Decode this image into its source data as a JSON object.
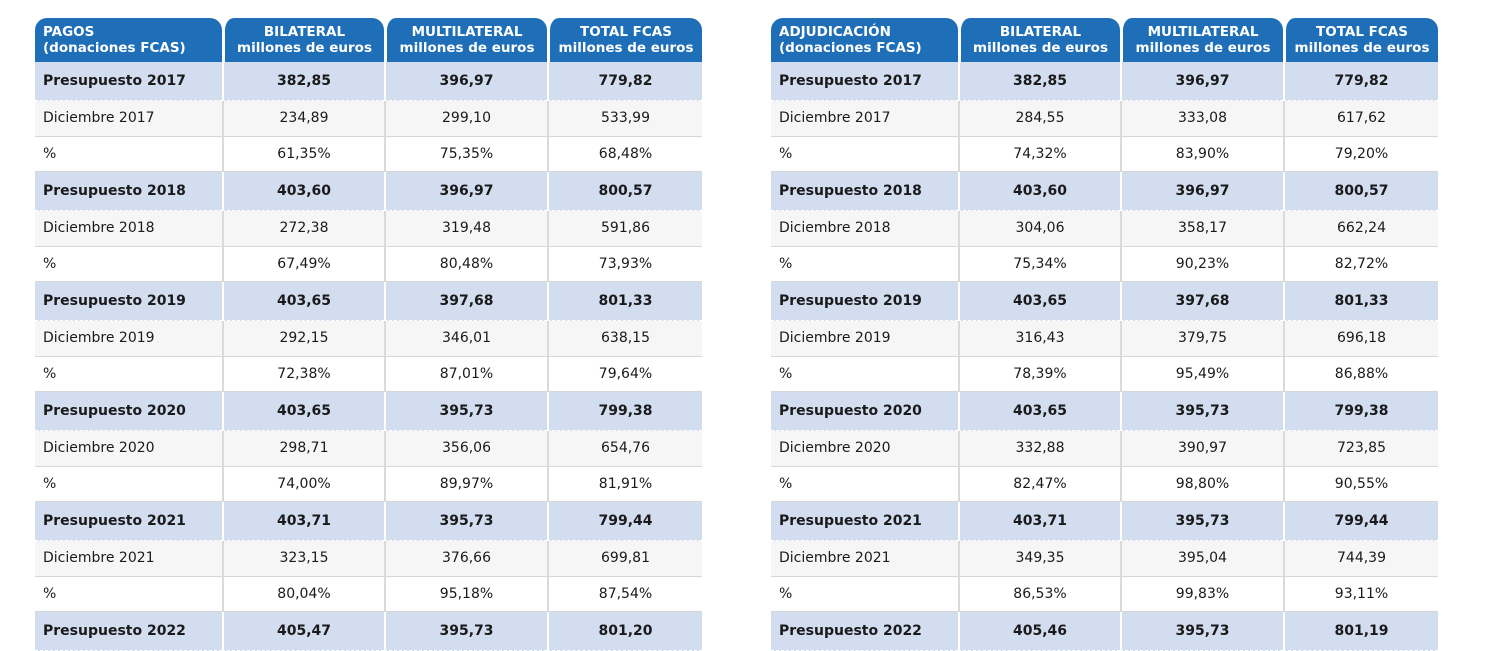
{
  "tables": [
    {
      "headers": [
        {
          "line1": "PAGOS",
          "line2": "(donaciones FCAS)"
        },
        {
          "line1": "BILATERAL",
          "line2": "millones de euros"
        },
        {
          "line1": "MULTILATERAL",
          "line2": "millones de euros"
        },
        {
          "line1": "TOTAL FCAS",
          "line2": "millones de euros"
        }
      ],
      "rows": [
        {
          "label": "Presupuesto 2017",
          "values": [
            "382,85",
            "396,97",
            "779,82"
          ]
        },
        {
          "label": "Diciembre 2017",
          "values": [
            "234,89",
            "299,10",
            "533,99"
          ]
        },
        {
          "label": "%",
          "values": [
            "61,35%",
            "75,35%",
            "68,48%"
          ]
        },
        {
          "label": "Presupuesto 2018",
          "values": [
            "403,60",
            "396,97",
            "800,57"
          ]
        },
        {
          "label": "Diciembre 2018",
          "values": [
            "272,38",
            "319,48",
            "591,86"
          ]
        },
        {
          "label": "%",
          "values": [
            "67,49%",
            "80,48%",
            "73,93%"
          ]
        },
        {
          "label": "Presupuesto 2019",
          "values": [
            "403,65",
            "397,68",
            "801,33"
          ]
        },
        {
          "label": "Diciembre 2019",
          "values": [
            "292,15",
            "346,01",
            "638,15"
          ]
        },
        {
          "label": "%",
          "values": [
            "72,38%",
            "87,01%",
            "79,64%"
          ]
        },
        {
          "label": "Presupuesto 2020",
          "values": [
            "403,65",
            "395,73",
            "799,38"
          ]
        },
        {
          "label": "Diciembre 2020",
          "values": [
            "298,71",
            "356,06",
            "654,76"
          ]
        },
        {
          "label": "%",
          "values": [
            "74,00%",
            "89,97%",
            "81,91%"
          ]
        },
        {
          "label": "Presupuesto 2021",
          "values": [
            "403,71",
            "395,73",
            "799,44"
          ]
        },
        {
          "label": "Diciembre 2021",
          "values": [
            "323,15",
            "376,66",
            "699,81"
          ]
        },
        {
          "label": "%",
          "values": [
            "80,04%",
            "95,18%",
            "87,54%"
          ]
        },
        {
          "label": "Presupuesto 2022",
          "values": [
            "405,47",
            "395,73",
            "801,20"
          ]
        }
      ]
    },
    {
      "headers": [
        {
          "line1": "ADJUDICACIÓN",
          "line2": "(donaciones FCAS)"
        },
        {
          "line1": "BILATERAL",
          "line2": "millones de euros"
        },
        {
          "line1": "MULTILATERAL",
          "line2": "millones de euros"
        },
        {
          "line1": "TOTAL FCAS",
          "line2": "millones de euros"
        }
      ],
      "rows": [
        {
          "label": "Presupuesto 2017",
          "values": [
            "382,85",
            "396,97",
            "779,82"
          ]
        },
        {
          "label": "Diciembre 2017",
          "values": [
            "284,55",
            "333,08",
            "617,62"
          ]
        },
        {
          "label": "%",
          "values": [
            "74,32%",
            "83,90%",
            "79,20%"
          ]
        },
        {
          "label": "Presupuesto 2018",
          "values": [
            "403,60",
            "396,97",
            "800,57"
          ]
        },
        {
          "label": "Diciembre 2018",
          "values": [
            "304,06",
            "358,17",
            "662,24"
          ]
        },
        {
          "label": "%",
          "values": [
            "75,34%",
            "90,23%",
            "82,72%"
          ]
        },
        {
          "label": "Presupuesto 2019",
          "values": [
            "403,65",
            "397,68",
            "801,33"
          ]
        },
        {
          "label": "Diciembre 2019",
          "values": [
            "316,43",
            "379,75",
            "696,18"
          ]
        },
        {
          "label": "%",
          "values": [
            "78,39%",
            "95,49%",
            "86,88%"
          ]
        },
        {
          "label": "Presupuesto 2020",
          "values": [
            "403,65",
            "395,73",
            "799,38"
          ]
        },
        {
          "label": "Diciembre 2020",
          "values": [
            "332,88",
            "390,97",
            "723,85"
          ]
        },
        {
          "label": "%",
          "values": [
            "82,47%",
            "98,80%",
            "90,55%"
          ]
        },
        {
          "label": "Presupuesto 2021",
          "values": [
            "403,71",
            "395,73",
            "799,44"
          ]
        },
        {
          "label": "Diciembre 2021",
          "values": [
            "349,35",
            "395,04",
            "744,39"
          ]
        },
        {
          "label": "%",
          "values": [
            "86,53%",
            "99,83%",
            "93,11%"
          ]
        },
        {
          "label": "Presupuesto 2022",
          "values": [
            "405,46",
            "395,73",
            "801,19"
          ]
        }
      ]
    }
  ]
}
